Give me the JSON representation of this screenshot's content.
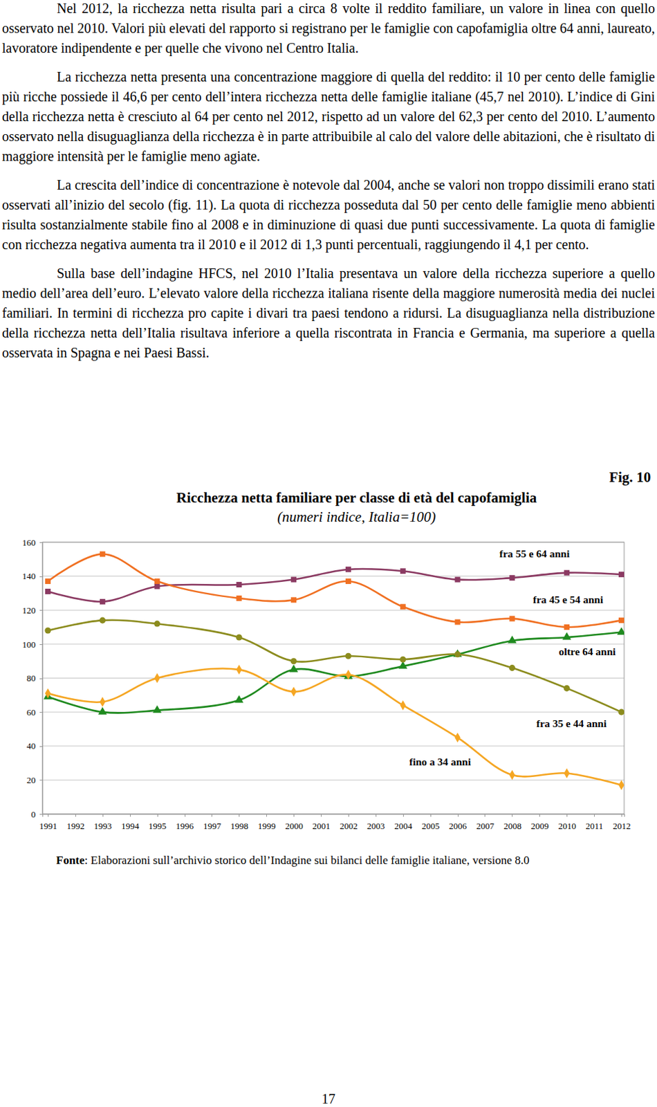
{
  "paragraphs": [
    "Nel 2012, la ricchezza netta risulta pari a circa 8 volte il reddito familiare, un valore in linea con quello osservato nel 2010. Valori più elevati del rapporto si registrano per le famiglie con capofamiglia oltre 64 anni, laureato, lavoratore indipendente e per quelle che vivono nel Centro Italia.",
    "La ricchezza netta presenta una concentrazione maggiore di quella del reddito: il 10 per cento delle famiglie più ricche possiede il 46,6 per cento dell’intera ricchezza netta delle famiglie italiane (45,7 nel 2010). L’indice di Gini della ricchezza netta è cresciuto al 64 per cento nel 2012, rispetto ad un valore del 62,3 per cento del 2010. L’aumento osservato nella disuguaglianza della ricchezza è in parte attribuibile al calo del valore delle abitazioni, che è risultato di maggiore intensità per le famiglie meno agiate.",
    "La crescita dell’indice di concentrazione è notevole dal 2004, anche se valori non troppo dissimili erano stati osservati all’inizio del secolo (fig. 11). La quota di ricchezza posseduta dal 50 per cento delle famiglie meno abbienti risulta sostanzialmente stabile fino al 2008 e in diminuzione di quasi due punti successivamente. La quota di famiglie con ricchezza negativa aumenta tra il 2010 e il 2012 di 1,3 punti percentuali, raggiungendo il 4,1 per cento.",
    "Sulla base dell’indagine HFCS, nel 2010 l’Italia presentava un valore della ricchezza superiore a quello medio dell’area dell’euro. L’elevato valore della ricchezza italiana risente della maggiore numerosità media dei nuclei familiari. In termini di ricchezza pro capite i divari tra paesi tendono a ridursi. La disuguaglianza nella distribuzione della ricchezza netta dell’Italia risultava inferiore a quella riscontrata in Francia e Germania, ma superiore a quella osservata in Spagna e nei Paesi Bassi."
  ],
  "figure_label": "Fig. 10",
  "chart_data": {
    "type": "line",
    "title": "Ricchezza netta familiare per classe di età del capofamiglia",
    "subtitle": "(numeri indice, Italia=100)",
    "x": [
      1991,
      1993,
      1995,
      1998,
      2000,
      2002,
      2004,
      2006,
      2008,
      2010,
      2012
    ],
    "xlim": [
      1990.8,
      2012.1
    ],
    "xticks": [
      1991,
      1992,
      1993,
      1994,
      1995,
      1996,
      1997,
      1998,
      1999,
      2000,
      2001,
      2002,
      2003,
      2004,
      2005,
      2006,
      2007,
      2008,
      2009,
      2010,
      2011,
      2012
    ],
    "ylim": [
      0,
      160
    ],
    "yticks": [
      0,
      20,
      40,
      60,
      80,
      100,
      120,
      140,
      160
    ],
    "grid": true,
    "series": [
      {
        "name": "fra 55 e 64 anni",
        "color": "#8b3a62",
        "marker": "square",
        "values": [
          131,
          125,
          134,
          135,
          138,
          144,
          143,
          138,
          139,
          142,
          141
        ]
      },
      {
        "name": "fra 45 e 54 anni",
        "color": "#f07022",
        "marker": "square",
        "values": [
          137,
          153,
          137,
          127,
          126,
          137,
          122,
          113,
          115,
          110,
          114
        ]
      },
      {
        "name": "oltre 64 anni",
        "color": "#1f8a1f",
        "marker": "triangle",
        "values": [
          69,
          60,
          61,
          67,
          85,
          81,
          87,
          94,
          102,
          104,
          107
        ]
      },
      {
        "name": "fra 35 e 44 anni",
        "color": "#8c8c1e",
        "marker": "circle",
        "values": [
          108,
          114,
          112,
          104,
          90,
          93,
          91,
          94,
          86,
          74,
          60
        ]
      },
      {
        "name": "fino a 34 anni",
        "color": "#f5a623",
        "marker": "diamond",
        "values": [
          71,
          66,
          80,
          85,
          72,
          82,
          64,
          45,
          23,
          24,
          17
        ]
      }
    ]
  },
  "source": {
    "label": "Fonte",
    "text": ": Elaborazioni sull’archivio storico dell’Indagine sui bilanci delle famiglie italiane, versione 8.0"
  },
  "page_number": "17"
}
